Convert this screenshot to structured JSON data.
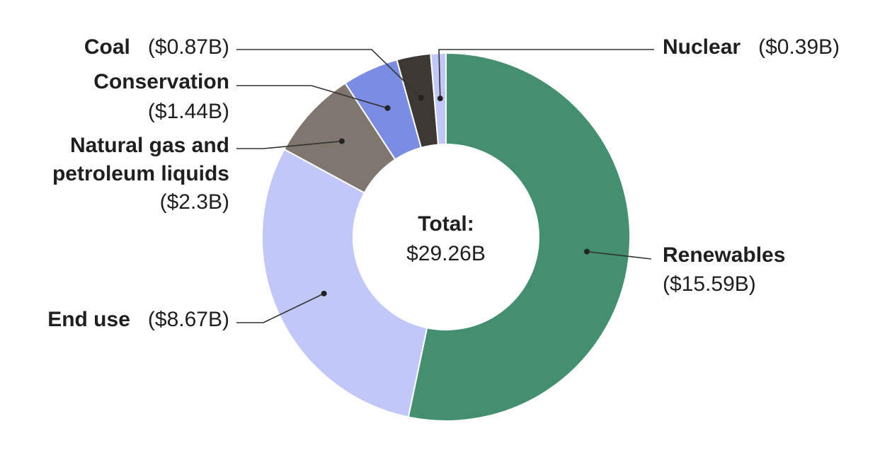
{
  "chart_data": {
    "type": "pie",
    "donut": true,
    "center": {
      "title": "Total:",
      "value": "$29.26B"
    },
    "slices": [
      {
        "name": "Renewables",
        "value": 15.59,
        "value_label": "($15.59B)",
        "color": "#438f70"
      },
      {
        "name": "End use",
        "value": 8.67,
        "value_label": "($8.67B)",
        "color": "#c1c8f7"
      },
      {
        "name": "Natural gas and petroleum liquids",
        "value": 2.3,
        "value_label": "($2.3B)",
        "color": "#7f7670"
      },
      {
        "name": "Conservation",
        "value": 1.44,
        "value_label": "($1.44B)",
        "color": "#7b8ce3"
      },
      {
        "name": "Coal",
        "value": 0.87,
        "value_label": "($0.87B)",
        "color": "#3d3834"
      },
      {
        "name": "Nuclear",
        "value": 0.39,
        "value_label": "($0.39B)",
        "color": "#c1c8f7"
      }
    ],
    "labels": {
      "coal": {
        "name": "Coal",
        "value": "($0.87B)"
      },
      "conservation": {
        "name": "Conservation",
        "value": "($1.44B)"
      },
      "natural_gas": {
        "line1": "Natural gas and",
        "line2": "petroleum liquids",
        "value": "($2.3B)"
      },
      "end_use": {
        "name": "End use",
        "value": "($8.67B)"
      },
      "nuclear": {
        "name": "Nuclear",
        "value": "($0.39B)"
      },
      "renewables": {
        "name": "Renewables",
        "value": "($15.59B)"
      }
    }
  }
}
